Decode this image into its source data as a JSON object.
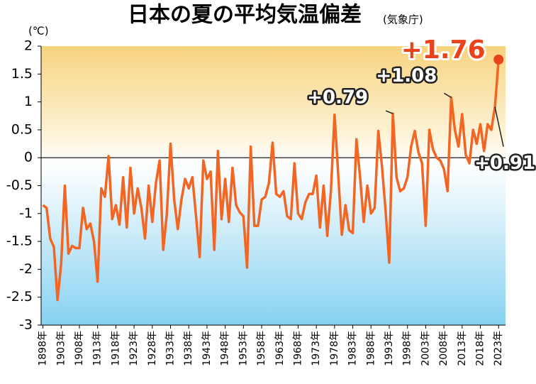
{
  "chart_data": {
    "type": "line",
    "title": "日本の夏の平均気温偏差",
    "subtitle": "(気象庁)",
    "y_unit": "(℃)",
    "x": [
      1898,
      1899,
      1900,
      1901,
      1902,
      1903,
      1904,
      1905,
      1906,
      1907,
      1908,
      1909,
      1910,
      1911,
      1912,
      1913,
      1914,
      1915,
      1916,
      1917,
      1918,
      1919,
      1920,
      1921,
      1922,
      1923,
      1924,
      1925,
      1926,
      1927,
      1928,
      1929,
      1930,
      1931,
      1932,
      1933,
      1934,
      1935,
      1936,
      1937,
      1938,
      1939,
      1940,
      1941,
      1942,
      1943,
      1944,
      1945,
      1946,
      1947,
      1948,
      1949,
      1950,
      1951,
      1952,
      1953,
      1954,
      1955,
      1956,
      1957,
      1958,
      1959,
      1960,
      1961,
      1962,
      1963,
      1964,
      1965,
      1966,
      1967,
      1968,
      1969,
      1970,
      1971,
      1972,
      1973,
      1974,
      1975,
      1976,
      1977,
      1978,
      1979,
      1980,
      1981,
      1982,
      1983,
      1984,
      1985,
      1986,
      1987,
      1988,
      1989,
      1990,
      1991,
      1992,
      1993,
      1994,
      1995,
      1996,
      1997,
      1998,
      1999,
      2000,
      2001,
      2002,
      2003,
      2004,
      2005,
      2006,
      2007,
      2008,
      2009,
      2010,
      2011,
      2012,
      2013,
      2014,
      2015,
      2016,
      2017,
      2018,
      2019,
      2020,
      2021,
      2022,
      2023
    ],
    "series": [
      {
        "name": "平均気温偏差",
        "color": "#f26522",
        "values": [
          -0.85,
          -0.9,
          -1.45,
          -1.6,
          -2.55,
          -1.9,
          -0.5,
          -1.72,
          -1.58,
          -1.62,
          -1.62,
          -0.9,
          -1.28,
          -1.18,
          -1.5,
          -2.22,
          -0.55,
          -0.7,
          0.03,
          -1.1,
          -0.85,
          -1.2,
          -0.35,
          -1.25,
          -0.18,
          -1.0,
          -0.55,
          -0.9,
          -1.45,
          -0.5,
          -1.15,
          -0.45,
          -0.05,
          -1.65,
          -1.0,
          0.25,
          -0.75,
          -1.28,
          -0.75,
          -0.38,
          -0.55,
          -0.35,
          -1.05,
          -1.78,
          -0.05,
          -0.38,
          -0.25,
          -1.65,
          0.12,
          -1.1,
          -0.38,
          -1.15,
          -0.18,
          -0.85,
          -0.98,
          -1.05,
          -1.97,
          0.2,
          -1.22,
          -1.22,
          -0.75,
          -0.7,
          -0.45,
          0.27,
          -0.65,
          -0.7,
          -0.6,
          -1.05,
          -1.1,
          -0.1,
          -1.0,
          -1.1,
          -0.8,
          -0.65,
          -0.65,
          -0.32,
          -1.25,
          -0.5,
          -1.4,
          -0.6,
          0.77,
          -0.3,
          -1.38,
          -0.85,
          -1.3,
          -1.35,
          0.33,
          -0.35,
          -1.15,
          -0.5,
          -1.0,
          -0.9,
          0.48,
          -0.15,
          -0.95,
          -1.88,
          0.79,
          -0.35,
          -0.6,
          -0.55,
          -0.35,
          0.2,
          0.48,
          0.1,
          -0.1,
          -1.22,
          0.5,
          0.15,
          0.0,
          -0.05,
          -0.2,
          -0.6,
          1.08,
          0.5,
          0.2,
          0.78,
          0.05,
          -0.1,
          0.5,
          0.25,
          0.6,
          0.12,
          0.6,
          0.5,
          0.91,
          1.76
        ]
      }
    ],
    "highlight_color": "#e8431a",
    "annotations": [
      {
        "text": "+0.79",
        "x": 1994
      },
      {
        "text": "+1.08",
        "x": 2010
      },
      {
        "text": "+0.91",
        "x": 2022
      },
      {
        "text": "+1.76",
        "x": 2023
      }
    ],
    "xlim": [
      1897.5,
      2024.9
    ],
    "xticks": [
      {
        "value": 1898,
        "label": "1898年"
      },
      {
        "value": 1903,
        "label": "1903年"
      },
      {
        "value": 1908,
        "label": "1908年"
      },
      {
        "value": 1913,
        "label": "1913年"
      },
      {
        "value": 1918,
        "label": "1918年"
      },
      {
        "value": 1923,
        "label": "1923年"
      },
      {
        "value": 1928,
        "label": "1928年"
      },
      {
        "value": 1933,
        "label": "1933年"
      },
      {
        "value": 1938,
        "label": "1938年"
      },
      {
        "value": 1943,
        "label": "1943年"
      },
      {
        "value": 1948,
        "label": "1948年"
      },
      {
        "value": 1953,
        "label": "1953年"
      },
      {
        "value": 1958,
        "label": "1958年"
      },
      {
        "value": 1963,
        "label": "1963年"
      },
      {
        "value": 1968,
        "label": "1968年"
      },
      {
        "value": 1973,
        "label": "1973年"
      },
      {
        "value": 1978,
        "label": "1978年"
      },
      {
        "value": 1983,
        "label": "1983年"
      },
      {
        "value": 1988,
        "label": "1988年"
      },
      {
        "value": 1993,
        "label": "1993年"
      },
      {
        "value": 1998,
        "label": "1998年"
      },
      {
        "value": 2003,
        "label": "2003年"
      },
      {
        "value": 2008,
        "label": "2008年"
      },
      {
        "value": 2013,
        "label": "2013年"
      },
      {
        "value": 2018,
        "label": "2018年"
      },
      {
        "value": 2023,
        "label": "2023年"
      }
    ],
    "ylim": [
      -3,
      2
    ],
    "yticks": [
      2,
      1.5,
      1,
      0.5,
      0,
      -0.5,
      -1,
      -1.5,
      -2,
      -2.5,
      -3
    ],
    "zero_line": true
  }
}
